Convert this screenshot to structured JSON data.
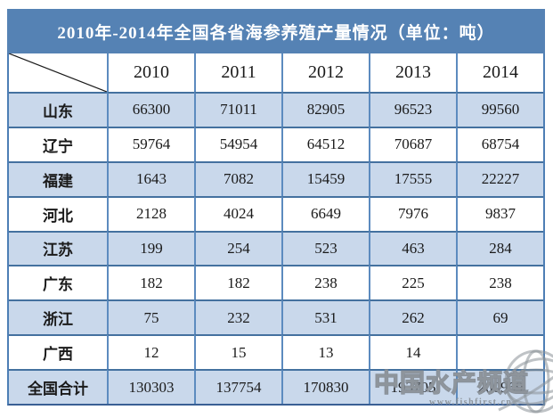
{
  "title": "2010年-2014年全国各省海参养殖产量情况（单位：吨）",
  "chart_data": {
    "type": "table",
    "title": "2010年-2014年全国各省海参养殖产量情况（单位：吨）",
    "unit": "吨",
    "columns": [
      "2010",
      "2011",
      "2012",
      "2013",
      "2014"
    ],
    "rows": [
      {
        "label": "山东",
        "values": [
          "66300",
          "71011",
          "82905",
          "96523",
          "99560"
        ]
      },
      {
        "label": "辽宁",
        "values": [
          "59764",
          "54954",
          "64512",
          "70687",
          "68754"
        ]
      },
      {
        "label": "福建",
        "values": [
          "1643",
          "7082",
          "15459",
          "17555",
          "22227"
        ]
      },
      {
        "label": "河北",
        "values": [
          "2128",
          "4024",
          "6649",
          "7976",
          "9837"
        ]
      },
      {
        "label": "江苏",
        "values": [
          "199",
          "254",
          "523",
          "463",
          "284"
        ]
      },
      {
        "label": "广东",
        "values": [
          "182",
          "182",
          "238",
          "225",
          "238"
        ]
      },
      {
        "label": "浙江",
        "values": [
          "75",
          "232",
          "531",
          "262",
          "69"
        ]
      },
      {
        "label": "广西",
        "values": [
          "12",
          "15",
          "13",
          "14",
          ""
        ]
      },
      {
        "label": "全国合计",
        "values": [
          "130303",
          "137754",
          "170830",
          "193705",
          "200969"
        ]
      }
    ],
    "layout_hints": {
      "alternating_row_colors": true,
      "corner_cell": "diagonal-split-empty",
      "note": "2013 and 2014 national totals partially obscured by watermark"
    }
  },
  "watermark": {
    "name": "中国水产频道",
    "url": "www.fishfirst.cn",
    "icon": "globe-icon"
  },
  "colors": {
    "title_bar_bg": "#5582B4",
    "title_text": "#FFFFFF",
    "alt_row_bg": "#C9D8EB",
    "row_bg": "#FFFFFF",
    "border_vertical": "#5C8BBF",
    "border_horizontal": "#44719F",
    "cell_text": "#1A1A1A",
    "watermark_gray": "#8A9198"
  }
}
